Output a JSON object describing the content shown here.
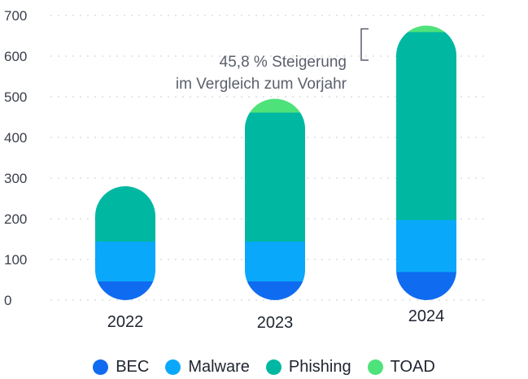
{
  "chart_data": {
    "type": "bar",
    "stacked": true,
    "categories": [
      "2022",
      "2023",
      "2024"
    ],
    "series": [
      {
        "name": "BEC",
        "color": "#0f6bf0",
        "values": [
          46,
          46,
          69
        ]
      },
      {
        "name": "Malware",
        "color": "#0aa8fb",
        "values": [
          98,
          98,
          128
        ]
      },
      {
        "name": "Phishing",
        "color": "#00b8a2",
        "values": [
          136,
          317,
          462
        ]
      },
      {
        "name": "TOAD",
        "color": "#4ee27a",
        "values": [
          0,
          34,
          16
        ]
      }
    ],
    "yticks": [
      "0",
      "100",
      "200",
      "300",
      "400",
      "500",
      "600",
      "700"
    ],
    "ylim": [
      0,
      700
    ],
    "grid": "horizontal dotted",
    "legend": "bottom",
    "annotation": {
      "lines": [
        "45,8 % Steigerung",
        "im Vergleich zum Vorjahr"
      ],
      "bracket_from": 590,
      "bracket_to": 667
    }
  }
}
